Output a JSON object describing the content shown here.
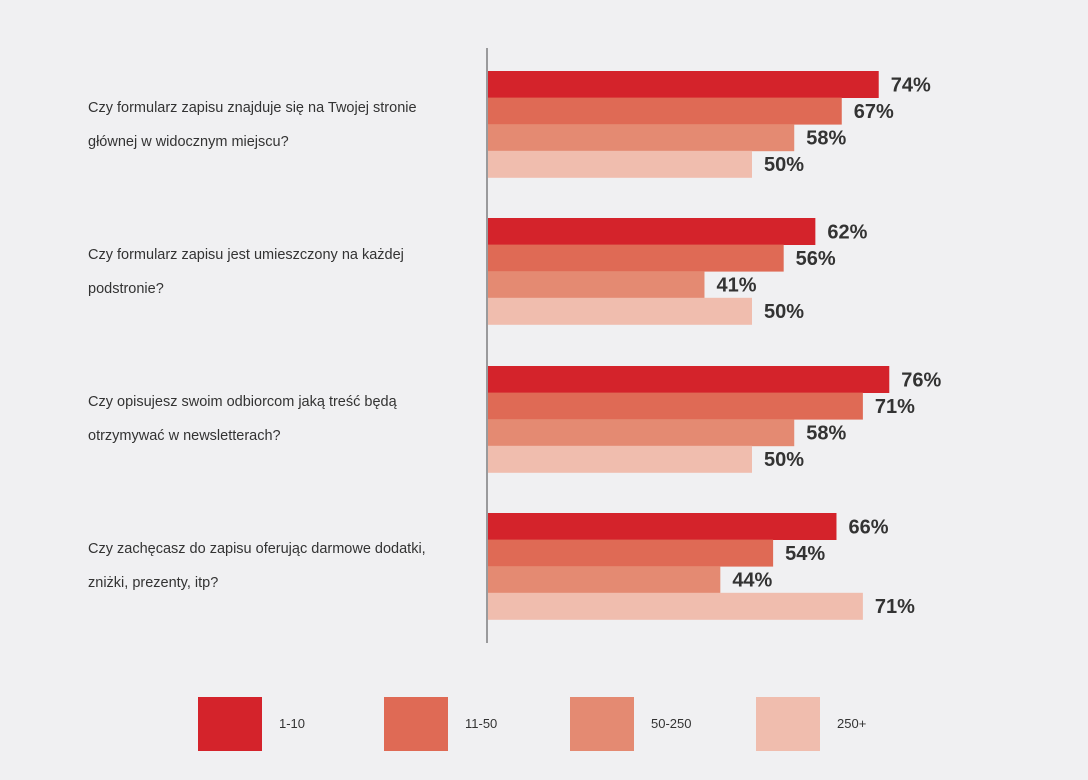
{
  "chart_data": {
    "type": "bar",
    "orientation": "horizontal",
    "categories": [
      "Czy formularz zapisu znajduje się na Twojej stronie głównej w widocznym miejscu?",
      "Czy formularz zapisu jest umieszczony na każdej podstronie?",
      "Czy opisujesz swoim odbiorcom jaką treść będą otrzymywać w newsletterach?",
      "Czy zachęcasz do zapisu oferując darmowe dodatki, zniżki, prezenty, itp?"
    ],
    "question_lines": [
      [
        "Czy formularz zapisu znajduje się na Twojej stronie",
        "głównej w widocznym miejscu?"
      ],
      [
        "Czy formularz zapisu jest umieszczony na każdej",
        "podstronie?"
      ],
      [
        "Czy opisujesz swoim odbiorcom jaką treść będą",
        "otrzymywać w newsletterach?"
      ],
      [
        "Czy zachęcasz do zapisu oferując darmowe dodatki,",
        "zniżki, prezenty, itp?"
      ]
    ],
    "series": [
      {
        "name": "1-10",
        "color": "#d4232b",
        "values": [
          74,
          62,
          76,
          66
        ]
      },
      {
        "name": "11-50",
        "color": "#df6a55",
        "values": [
          67,
          56,
          71,
          54
        ]
      },
      {
        "name": "50-250",
        "color": "#e48a72",
        "values": [
          58,
          41,
          58,
          44
        ]
      },
      {
        "name": "250+",
        "color": "#f0bdae",
        "values": [
          50,
          50,
          50,
          71
        ]
      }
    ],
    "value_suffix": "%",
    "xlim": [
      0,
      100
    ],
    "title": "",
    "xlabel": "",
    "ylabel": "",
    "legend_position": "bottom"
  }
}
